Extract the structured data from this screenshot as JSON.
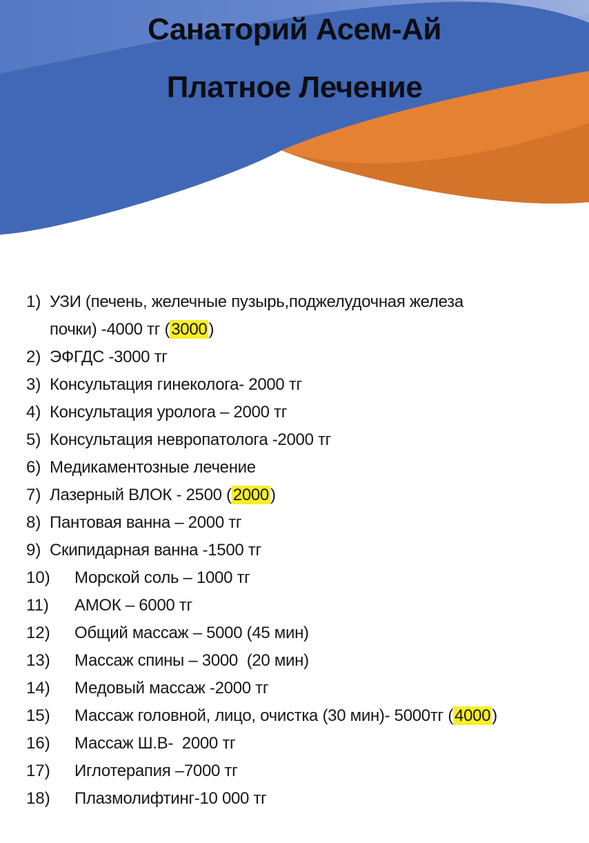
{
  "titles": {
    "line1": "Санаторий Асем-Ай",
    "line2": "Платное Лечение"
  },
  "theme": {
    "header_blue_left": "#5578c4",
    "header_blue_light_right": "#93a8db",
    "wave_blue": "#4068b7",
    "wave_orange": "#e58132",
    "wave_orange_dark": "#d4742a",
    "highlight_yellow": "#f7ee25",
    "title_text": "#0d0e13",
    "body_text": "#17171a"
  },
  "list": {
    "items": [
      {
        "num": "1)",
        "segments": [
          {
            "text": "УЗИ (печень, желечные пузырь,поджелудочная железа"
          },
          {
            "br": true
          },
          {
            "text": "почки) -4000 тг ("
          },
          {
            "text": "3000",
            "highlight": true
          },
          {
            "text": ")"
          }
        ]
      },
      {
        "num": "2)",
        "segments": [
          {
            "text": "ЭФГДС -3000 тг"
          }
        ]
      },
      {
        "num": "3)",
        "segments": [
          {
            "text": "Консультация гинеколога- 2000 тг"
          }
        ]
      },
      {
        "num": "4)",
        "segments": [
          {
            "text": "Консультация уролога – 2000 тг"
          }
        ]
      },
      {
        "num": "5)",
        "segments": [
          {
            "text": "Консультация невропатолога -2000 тг"
          }
        ]
      },
      {
        "num": "6)",
        "segments": [
          {
            "text": "Медикаментозные лечение"
          }
        ]
      },
      {
        "num": "7)",
        "segments": [
          {
            "text": "Лазерный ВЛОК - 2500 ("
          },
          {
            "text": "2000",
            "highlight": true
          },
          {
            "text": ")"
          }
        ]
      },
      {
        "num": "8)",
        "segments": [
          {
            "text": "Пантовая ванна – 2000 тг"
          }
        ]
      },
      {
        "num": "9)",
        "segments": [
          {
            "text": "Скипидарная ванна -1500 тг"
          }
        ]
      },
      {
        "num": "10)",
        "segments": [
          {
            "text": "Морской соль – 1000 тг"
          }
        ]
      },
      {
        "num": "11)",
        "segments": [
          {
            "text": "АМОК – 6000 тг"
          }
        ]
      },
      {
        "num": "12)",
        "segments": [
          {
            "text": "Общий массаж – 5000 (45 мин)"
          }
        ]
      },
      {
        "num": "13)",
        "segments": [
          {
            "text": "Массаж спины – 3000  (20 мин)"
          }
        ]
      },
      {
        "num": "14)",
        "segments": [
          {
            "text": "Медовый массаж -2000 тг"
          }
        ]
      },
      {
        "num": "15)",
        "segments": [
          {
            "text": "Массаж головной, лицо, очистка (30 мин)- 5000тг ("
          },
          {
            "text": "4000",
            "highlight": true
          },
          {
            "text": ")"
          }
        ]
      },
      {
        "num": "16)",
        "segments": [
          {
            "text": "Массаж Ш.В-  2000 тг"
          }
        ]
      },
      {
        "num": "17)",
        "segments": [
          {
            "text": "Иглотерапия –7000 тг"
          }
        ]
      },
      {
        "num": "18)",
        "segments": [
          {
            "text": "Плазмолифтинг-10 000 тг"
          }
        ]
      }
    ]
  }
}
